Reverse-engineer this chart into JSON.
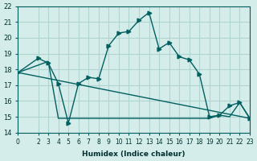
{
  "xlabel": "Humidex (Indice chaleur)",
  "ylabel": "",
  "bg_color": "#d4ecea",
  "grid_color": "#b0d4d0",
  "line_color": "#006060",
  "xlim": [
    0,
    23
  ],
  "ylim": [
    14,
    22
  ],
  "yticks": [
    14,
    15,
    16,
    17,
    18,
    19,
    20,
    21,
    22
  ],
  "xticks": [
    0,
    2,
    3,
    4,
    5,
    6,
    7,
    8,
    9,
    10,
    11,
    12,
    13,
    14,
    15,
    16,
    17,
    18,
    19,
    20,
    21,
    22,
    23
  ],
  "line1_x": [
    0,
    2,
    3,
    4,
    5,
    6,
    7,
    8,
    9,
    10,
    11,
    12,
    13,
    14,
    15,
    16,
    17,
    18,
    19,
    20,
    21,
    22,
    23
  ],
  "line1_y": [
    17.8,
    18.7,
    18.4,
    17.1,
    14.6,
    17.1,
    17.5,
    17.4,
    19.5,
    20.3,
    20.4,
    21.1,
    21.6,
    19.3,
    19.7,
    18.8,
    18.6,
    17.7,
    15.0,
    15.1,
    15.7,
    15.9,
    14.9
  ],
  "line2_x": [
    0,
    3,
    4,
    5,
    10,
    15,
    19,
    20,
    21,
    22,
    23
  ],
  "line2_y": [
    17.8,
    18.5,
    14.9,
    14.9,
    14.9,
    14.9,
    14.9,
    15.1,
    15.0,
    15.9,
    14.9
  ],
  "line3_x": [
    0,
    23
  ],
  "line3_y": [
    17.8,
    14.9
  ]
}
